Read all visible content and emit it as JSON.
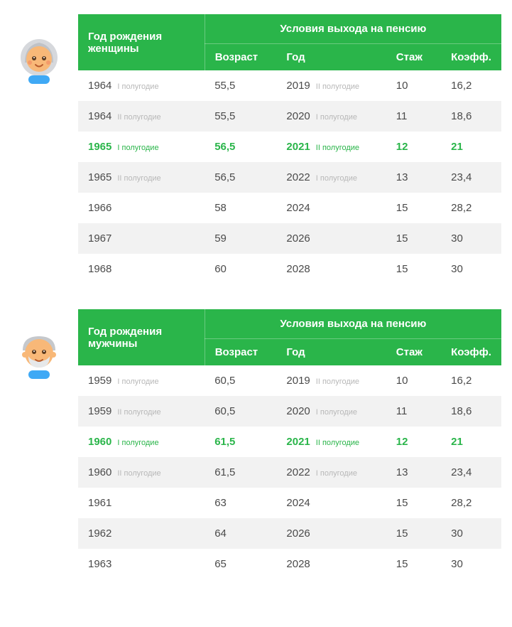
{
  "colors": {
    "header_bg": "#2ab54a",
    "header_text": "#ffffff",
    "text": "#4a4a4a",
    "sub_text": "#b8b8b8",
    "row_alt": "#f2f2f2",
    "highlight": "#2ab54a"
  },
  "shared": {
    "conditions_header": "Условия выхода на пенсию",
    "col_age": "Возраст",
    "col_year": "Год",
    "col_exp": "Стаж",
    "col_coef": "Коэфф."
  },
  "women": {
    "label": "Год рождения женщины",
    "rows": [
      {
        "hl": false,
        "year": "1964",
        "half_birth": "I полугодие",
        "age": "55,5",
        "ret_year": "2019",
        "half_ret": "II полугодие",
        "exp": "10",
        "coef": "16,2"
      },
      {
        "hl": false,
        "year": "1964",
        "half_birth": "II полугодие",
        "age": "55,5",
        "ret_year": "2020",
        "half_ret": "I полугодие",
        "exp": "11",
        "coef": "18,6"
      },
      {
        "hl": true,
        "year": "1965",
        "half_birth": "I полугодие",
        "age": "56,5",
        "ret_year": "2021",
        "half_ret": "II полугодие",
        "exp": "12",
        "coef": "21"
      },
      {
        "hl": false,
        "year": "1965",
        "half_birth": "II полугодие",
        "age": "56,5",
        "ret_year": "2022",
        "half_ret": "I полугодие",
        "exp": "13",
        "coef": "23,4"
      },
      {
        "hl": false,
        "year": "1966",
        "half_birth": "",
        "age": "58",
        "ret_year": "2024",
        "half_ret": "",
        "exp": "15",
        "coef": "28,2"
      },
      {
        "hl": false,
        "year": "1967",
        "half_birth": "",
        "age": "59",
        "ret_year": "2026",
        "half_ret": "",
        "exp": "15",
        "coef": "30"
      },
      {
        "hl": false,
        "year": "1968",
        "half_birth": "",
        "age": "60",
        "ret_year": "2028",
        "half_ret": "",
        "exp": "15",
        "coef": "30"
      }
    ]
  },
  "men": {
    "label": "Год рождения мужчины",
    "rows": [
      {
        "hl": false,
        "year": "1959",
        "half_birth": "I полугодие",
        "age": "60,5",
        "ret_year": "2019",
        "half_ret": "II полугодие",
        "exp": "10",
        "coef": "16,2"
      },
      {
        "hl": false,
        "year": "1959",
        "half_birth": "II полугодие",
        "age": "60,5",
        "ret_year": "2020",
        "half_ret": "I полугодие",
        "exp": "11",
        "coef": "18,6"
      },
      {
        "hl": true,
        "year": "1960",
        "half_birth": "I полугодие",
        "age": "61,5",
        "ret_year": "2021",
        "half_ret": "II полугодие",
        "exp": "12",
        "coef": "21"
      },
      {
        "hl": false,
        "year": "1960",
        "half_birth": "II полугодие",
        "age": "61,5",
        "ret_year": "2022",
        "half_ret": "I полугодие",
        "exp": "13",
        "coef": "23,4"
      },
      {
        "hl": false,
        "year": "1961",
        "half_birth": "",
        "age": "63",
        "ret_year": "2024",
        "half_ret": "",
        "exp": "15",
        "coef": "28,2"
      },
      {
        "hl": false,
        "year": "1962",
        "half_birth": "",
        "age": "64",
        "ret_year": "2026",
        "half_ret": "",
        "exp": "15",
        "coef": "30"
      },
      {
        "hl": false,
        "year": "1963",
        "half_birth": "",
        "age": "65",
        "ret_year": "2028",
        "half_ret": "",
        "exp": "15",
        "coef": "30"
      }
    ]
  }
}
